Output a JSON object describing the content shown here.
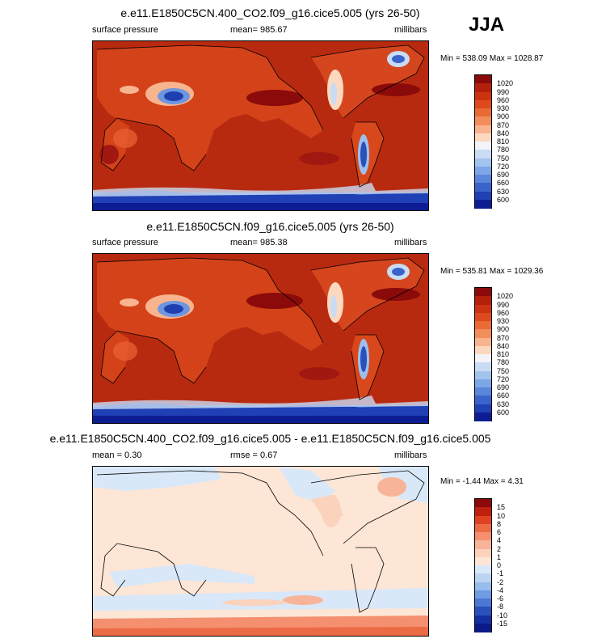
{
  "season": "JJA",
  "panels": [
    {
      "title": "e.e11.E1850C5CN.400_CO2.f09_g16.cice5.005 (yrs 26-50)",
      "left_label": "surface pressure",
      "center_label": "mean= 985.67",
      "right_label": "millibars",
      "minmax": "Min = 538.09 Max = 1028.87"
    },
    {
      "title": "e.e11.E1850C5CN.f09_g16.cice5.005 (yrs 26-50)",
      "left_label": "surface pressure",
      "center_label": "mean= 985.38",
      "right_label": "millibars",
      "minmax": "Min = 535.81 Max = 1029.36"
    },
    {
      "title": "e.e11.E1850C5CN.400_CO2.f09_g16.cice5.005 - e.e11.E1850C5CN.f09_g16.cice5.005",
      "left_label": "mean =  0.30",
      "center_label": "rmse =  0.67",
      "right_label": "millibars",
      "minmax": "Min =  -1.44 Max =  4.31"
    }
  ],
  "chart_data": [
    {
      "type": "heatmap",
      "title": "e.e11.E1850C5CN.400_CO2.f09_g16.cice5.005 (yrs 26-50)",
      "variable": "surface pressure",
      "units": "millibars",
      "mean": 985.67,
      "min": 538.09,
      "max": 1028.87,
      "colorbar_levels": [
        1020,
        990,
        960,
        930,
        900,
        870,
        840,
        810,
        780,
        750,
        720,
        690,
        660,
        630,
        600
      ],
      "colorbar_colors": [
        "#8b0a0a",
        "#b5200c",
        "#cc3310",
        "#dd4a1e",
        "#ea6a36",
        "#f28e5c",
        "#f8b48e",
        "#fcd8c0",
        "#f4f4f8",
        "#c9dcf4",
        "#a2c3ee",
        "#7da6e6",
        "#5a86db",
        "#3a63cc",
        "#2040b6",
        "#0c1d94"
      ]
    },
    {
      "type": "heatmap",
      "title": "e.e11.E1850C5CN.f09_g16.cice5.005 (yrs 26-50)",
      "variable": "surface pressure",
      "units": "millibars",
      "mean": 985.38,
      "min": 535.81,
      "max": 1029.36,
      "colorbar_levels": [
        1020,
        990,
        960,
        930,
        900,
        870,
        840,
        810,
        780,
        750,
        720,
        690,
        660,
        630,
        600
      ],
      "colorbar_colors": [
        "#8b0a0a",
        "#b5200c",
        "#cc3310",
        "#dd4a1e",
        "#ea6a36",
        "#f28e5c",
        "#f8b48e",
        "#fcd8c0",
        "#f4f4f8",
        "#c9dcf4",
        "#a2c3ee",
        "#7da6e6",
        "#5a86db",
        "#3a63cc",
        "#2040b6",
        "#0c1d94"
      ]
    },
    {
      "type": "heatmap",
      "title": "e.e11.E1850C5CN.400_CO2.f09_g16.cice5.005 - e.e11.E1850C5CN.f09_g16.cice5.005",
      "units": "millibars",
      "mean": 0.3,
      "rmse": 0.67,
      "min": -1.44,
      "max": 4.31,
      "colorbar_levels": [
        15,
        10,
        8,
        6,
        4,
        2,
        1,
        0,
        -1,
        -2,
        -4,
        -6,
        -8,
        -10,
        -15
      ],
      "colorbar_colors": [
        "#8b0a0a",
        "#c0200e",
        "#de4220",
        "#ec6a44",
        "#f49070",
        "#f8b498",
        "#fbd2bc",
        "#fde6d6",
        "#d9e8f8",
        "#bcd4f2",
        "#98bcec",
        "#6f9ce2",
        "#4a78d4",
        "#2a50bc",
        "#1430a0",
        "#0a1a86"
      ]
    }
  ]
}
